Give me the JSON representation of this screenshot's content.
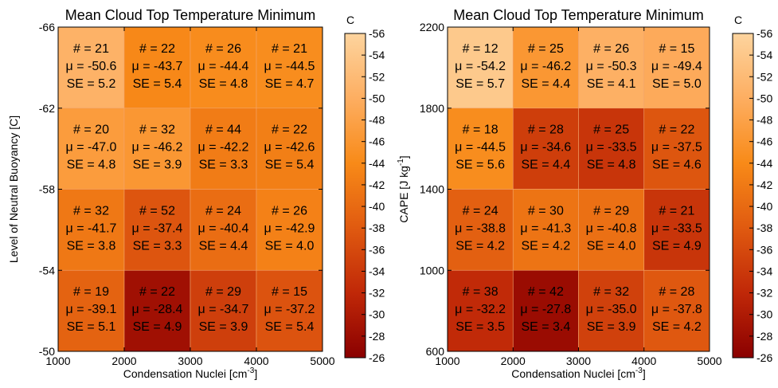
{
  "colorbar": {
    "unit_label": "C",
    "min": -56,
    "max": -26,
    "ticks": [
      -56,
      -54,
      -52,
      -50,
      -48,
      -46,
      -44,
      -42,
      -40,
      -38,
      -36,
      -34,
      -32,
      -30,
      -28,
      -26
    ],
    "tick_labels": [
      "-56",
      "-54",
      "-52",
      "-50",
      "-48",
      "-46",
      "-44",
      "-42",
      "-40",
      "-38",
      "-36",
      "-34",
      "-32",
      "-30",
      "-28",
      "-26"
    ]
  },
  "chart_data": [
    {
      "type": "heatmap",
      "title": "Mean Cloud Top Temperature Minimum",
      "xlabel": "Condensation Nuclei [cm",
      "xlabel_sup": "-3",
      "xlabel_tail": "]",
      "ylabel": "Level of Neutral Buoyancy [C]",
      "xlim": [
        1000,
        5000
      ],
      "ylim": [
        -50,
        -66
      ],
      "x_ticks": [
        1000,
        2000,
        3000,
        4000,
        5000
      ],
      "x_tick_labels": [
        "1000",
        "2000",
        "3000",
        "4000",
        "5000"
      ],
      "y_ticks": [
        -66,
        -62,
        -58,
        -54,
        -50
      ],
      "y_tick_labels": [
        "-66",
        "-62",
        "-58",
        "-54",
        "-50"
      ],
      "rows": [
        [
          {
            "n": "# = 21",
            "mean_label": "μ = -50.6",
            "se": "SE = 5.2",
            "value": -50.6
          },
          {
            "n": "# = 22",
            "mean_label": "μ = -43.7",
            "se": "SE = 5.4",
            "value": -43.7
          },
          {
            "n": "# = 26",
            "mean_label": "μ = -44.4",
            "se": "SE = 4.8",
            "value": -44.4
          },
          {
            "n": "# = 21",
            "mean_label": "μ = -44.5",
            "se": "SE = 4.7",
            "value": -44.5
          }
        ],
        [
          {
            "n": "# = 20",
            "mean_label": "μ = -47.0",
            "se": "SE = 4.8",
            "value": -47.0
          },
          {
            "n": "# = 32",
            "mean_label": "μ = -46.2",
            "se": "SE = 3.9",
            "value": -46.2
          },
          {
            "n": "# = 44",
            "mean_label": "μ = -42.2",
            "se": "SE = 3.3",
            "value": -42.2
          },
          {
            "n": "# = 22",
            "mean_label": "μ = -42.6",
            "se": "SE = 5.4",
            "value": -42.6
          }
        ],
        [
          {
            "n": "# = 32",
            "mean_label": "μ = -41.7",
            "se": "SE = 3.8",
            "value": -41.7
          },
          {
            "n": "# = 52",
            "mean_label": "μ = -37.4",
            "se": "SE = 3.3",
            "value": -37.4
          },
          {
            "n": "# = 24",
            "mean_label": "μ = -40.4",
            "se": "SE = 4.4",
            "value": -40.4
          },
          {
            "n": "# = 26",
            "mean_label": "μ = -42.9",
            "se": "SE = 4.0",
            "value": -42.9
          }
        ],
        [
          {
            "n": "# = 19",
            "mean_label": "μ = -39.1",
            "se": "SE = 5.1",
            "value": -39.1
          },
          {
            "n": "# = 22",
            "mean_label": "μ = -28.4",
            "se": "SE = 4.9",
            "value": -28.4
          },
          {
            "n": "# = 29",
            "mean_label": "μ = -34.7",
            "se": "SE = 3.9",
            "value": -34.7
          },
          {
            "n": "# = 15",
            "mean_label": "μ = -37.2",
            "se": "SE = 5.4",
            "value": -37.2
          }
        ]
      ]
    },
    {
      "type": "heatmap",
      "title": "Mean Cloud Top Temperature Minimum",
      "xlabel": "Condensation Nuclei [cm",
      "xlabel_sup": "-3",
      "xlabel_tail": "]",
      "ylabel": "CAPE [J kg",
      "ylabel_sup": "-1",
      "ylabel_tail": "]",
      "xlim": [
        1000,
        5000
      ],
      "ylim": [
        600,
        2200
      ],
      "x_ticks": [
        1000,
        2000,
        3000,
        4000,
        5000
      ],
      "x_tick_labels": [
        "1000",
        "2000",
        "3000",
        "4000",
        "5000"
      ],
      "y_ticks": [
        2200,
        1800,
        1400,
        1000,
        600
      ],
      "y_tick_labels": [
        "2200",
        "1800",
        "1400",
        "1000",
        "600"
      ],
      "rows": [
        [
          {
            "n": "# = 12",
            "mean_label": "μ = -54.2",
            "se": "SE = 5.7",
            "value": -54.2
          },
          {
            "n": "# = 25",
            "mean_label": "μ = -46.2",
            "se": "SE = 4.4",
            "value": -46.2
          },
          {
            "n": "# = 26",
            "mean_label": "μ = -50.3",
            "se": "SE = 4.1",
            "value": -50.3
          },
          {
            "n": "# = 15",
            "mean_label": "μ = -49.4",
            "se": "SE = 5.0",
            "value": -49.4
          }
        ],
        [
          {
            "n": "# = 18",
            "mean_label": "μ = -44.5",
            "se": "SE = 5.6",
            "value": -44.5
          },
          {
            "n": "# = 28",
            "mean_label": "μ = -34.6",
            "se": "SE = 4.4",
            "value": -34.6
          },
          {
            "n": "# = 25",
            "mean_label": "μ = -33.5",
            "se": "SE = 4.8",
            "value": -33.5
          },
          {
            "n": "# = 22",
            "mean_label": "μ = -37.5",
            "se": "SE = 4.6",
            "value": -37.5
          }
        ],
        [
          {
            "n": "# = 24",
            "mean_label": "μ = -38.8",
            "se": "SE = 4.2",
            "value": -38.8
          },
          {
            "n": "# = 30",
            "mean_label": "μ = -41.3",
            "se": "SE = 4.2",
            "value": -41.3
          },
          {
            "n": "# = 29",
            "mean_label": "μ = -40.8",
            "se": "SE = 4.0",
            "value": -40.8
          },
          {
            "n": "# = 21",
            "mean_label": "μ = -33.5",
            "se": "SE = 4.9",
            "value": -33.5
          }
        ],
        [
          {
            "n": "# = 38",
            "mean_label": "μ = -32.2",
            "se": "SE = 3.5",
            "value": -32.2
          },
          {
            "n": "# = 42",
            "mean_label": "μ = -27.8",
            "se": "SE = 3.4",
            "value": -27.8
          },
          {
            "n": "# = 32",
            "mean_label": "μ = -35.0",
            "se": "SE = 3.9",
            "value": -35.0
          },
          {
            "n": "# = 28",
            "mean_label": "μ = -37.8",
            "se": "SE = 4.2",
            "value": -37.8
          }
        ]
      ]
    }
  ]
}
